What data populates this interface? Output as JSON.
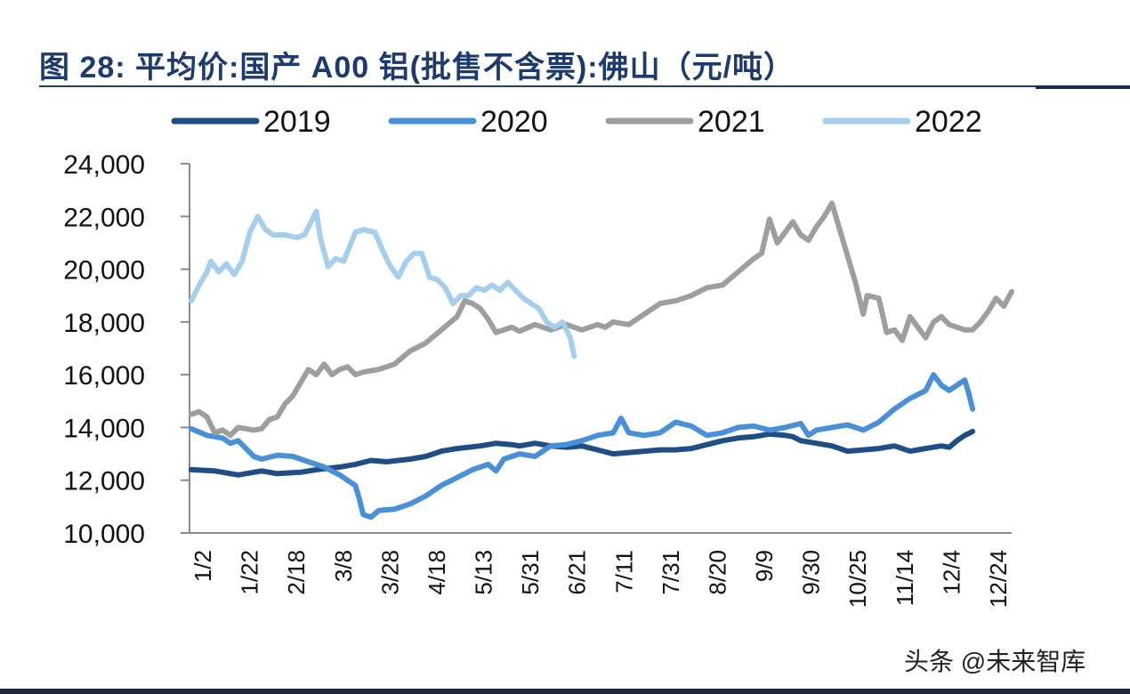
{
  "chart_data": {
    "type": "line",
    "title": "图 28: 平均价:国产 A00 铝(批售不含票):佛山（元/吨）",
    "xlabel": "",
    "ylabel": "",
    "ylim": [
      10000,
      24000
    ],
    "yticks": [
      10000,
      12000,
      14000,
      16000,
      18000,
      20000,
      22000,
      24000
    ],
    "ytick_labels": [
      "10,000",
      "12,000",
      "14,000",
      "16,000",
      "18,000",
      "20,000",
      "22,000",
      "24,000"
    ],
    "xtick_labels": [
      "1/2",
      "1/22",
      "2/18",
      "3/8",
      "3/28",
      "4/18",
      "5/13",
      "5/31",
      "6/21",
      "7/11",
      "7/31",
      "8/20",
      "9/9",
      "9/30",
      "10/25",
      "11/14",
      "12/4",
      "12/24"
    ],
    "x_description": "date within year (fraction of year from 1/2 to 12/31)",
    "grid": false,
    "legend_position": "top",
    "series": [
      {
        "name": "2019",
        "color": "#1f4e85",
        "points": [
          [
            0.0,
            12400
          ],
          [
            0.03,
            12350
          ],
          [
            0.06,
            12200
          ],
          [
            0.09,
            12350
          ],
          [
            0.11,
            12250
          ],
          [
            0.14,
            12300
          ],
          [
            0.16,
            12400
          ],
          [
            0.19,
            12500
          ],
          [
            0.21,
            12600
          ],
          [
            0.23,
            12750
          ],
          [
            0.25,
            12700
          ],
          [
            0.28,
            12800
          ],
          [
            0.3,
            12900
          ],
          [
            0.32,
            13100
          ],
          [
            0.34,
            13200
          ],
          [
            0.37,
            13300
          ],
          [
            0.39,
            13400
          ],
          [
            0.41,
            13350
          ],
          [
            0.42,
            13300
          ],
          [
            0.44,
            13400
          ],
          [
            0.46,
            13300
          ],
          [
            0.48,
            13250
          ],
          [
            0.5,
            13300
          ],
          [
            0.52,
            13150
          ],
          [
            0.54,
            13000
          ],
          [
            0.56,
            13050
          ],
          [
            0.58,
            13100
          ],
          [
            0.6,
            13150
          ],
          [
            0.62,
            13150
          ],
          [
            0.64,
            13200
          ],
          [
            0.66,
            13350
          ],
          [
            0.68,
            13500
          ],
          [
            0.7,
            13600
          ],
          [
            0.72,
            13650
          ],
          [
            0.74,
            13750
          ],
          [
            0.76,
            13700
          ],
          [
            0.77,
            13650
          ],
          [
            0.78,
            13500
          ],
          [
            0.8,
            13400
          ],
          [
            0.82,
            13300
          ],
          [
            0.84,
            13100
          ],
          [
            0.86,
            13150
          ],
          [
            0.88,
            13200
          ],
          [
            0.9,
            13300
          ],
          [
            0.91,
            13200
          ],
          [
            0.92,
            13100
          ],
          [
            0.94,
            13200
          ],
          [
            0.96,
            13300
          ],
          [
            0.97,
            13250
          ],
          [
            0.98,
            13500
          ],
          [
            0.99,
            13700
          ],
          [
            1.0,
            13850
          ]
        ]
      },
      {
        "name": "2020",
        "color": "#4a90d9",
        "points": [
          [
            0.0,
            13950
          ],
          [
            0.02,
            13700
          ],
          [
            0.04,
            13600
          ],
          [
            0.05,
            13400
          ],
          [
            0.06,
            13500
          ],
          [
            0.07,
            13200
          ],
          [
            0.08,
            12900
          ],
          [
            0.09,
            12800
          ],
          [
            0.11,
            12950
          ],
          [
            0.13,
            12900
          ],
          [
            0.15,
            12700
          ],
          [
            0.17,
            12500
          ],
          [
            0.19,
            12200
          ],
          [
            0.2,
            12000
          ],
          [
            0.21,
            11800
          ],
          [
            0.215,
            11300
          ],
          [
            0.22,
            10700
          ],
          [
            0.23,
            10600
          ],
          [
            0.24,
            10850
          ],
          [
            0.26,
            10900
          ],
          [
            0.28,
            11100
          ],
          [
            0.3,
            11400
          ],
          [
            0.32,
            11800
          ],
          [
            0.34,
            12100
          ],
          [
            0.36,
            12400
          ],
          [
            0.38,
            12600
          ],
          [
            0.39,
            12350
          ],
          [
            0.4,
            12800
          ],
          [
            0.42,
            13000
          ],
          [
            0.44,
            12900
          ],
          [
            0.46,
            13300
          ],
          [
            0.48,
            13350
          ],
          [
            0.5,
            13500
          ],
          [
            0.52,
            13700
          ],
          [
            0.54,
            13800
          ],
          [
            0.55,
            14350
          ],
          [
            0.56,
            13800
          ],
          [
            0.58,
            13700
          ],
          [
            0.6,
            13800
          ],
          [
            0.62,
            14200
          ],
          [
            0.64,
            14050
          ],
          [
            0.66,
            13700
          ],
          [
            0.68,
            13800
          ],
          [
            0.7,
            14000
          ],
          [
            0.72,
            14050
          ],
          [
            0.74,
            13900
          ],
          [
            0.76,
            14000
          ],
          [
            0.78,
            14150
          ],
          [
            0.79,
            13700
          ],
          [
            0.8,
            13900
          ],
          [
            0.82,
            14000
          ],
          [
            0.84,
            14100
          ],
          [
            0.86,
            13900
          ],
          [
            0.88,
            14200
          ],
          [
            0.9,
            14700
          ],
          [
            0.92,
            15100
          ],
          [
            0.94,
            15400
          ],
          [
            0.95,
            16000
          ],
          [
            0.96,
            15600
          ],
          [
            0.97,
            15400
          ],
          [
            0.98,
            15600
          ],
          [
            0.99,
            15800
          ],
          [
            0.995,
            15300
          ],
          [
            1.0,
            14700
          ]
        ]
      },
      {
        "name": "2021",
        "color": "#9e9e9e",
        "points": [
          [
            0.0,
            14500
          ],
          [
            0.01,
            14600
          ],
          [
            0.02,
            14400
          ],
          [
            0.03,
            13800
          ],
          [
            0.04,
            13900
          ],
          [
            0.05,
            13700
          ],
          [
            0.06,
            14000
          ],
          [
            0.07,
            13950
          ],
          [
            0.08,
            13900
          ],
          [
            0.09,
            13950
          ],
          [
            0.1,
            14300
          ],
          [
            0.11,
            14400
          ],
          [
            0.12,
            14900
          ],
          [
            0.13,
            15200
          ],
          [
            0.14,
            15700
          ],
          [
            0.15,
            16200
          ],
          [
            0.16,
            16000
          ],
          [
            0.17,
            16400
          ],
          [
            0.18,
            16000
          ],
          [
            0.19,
            16200
          ],
          [
            0.2,
            16300
          ],
          [
            0.21,
            16000
          ],
          [
            0.22,
            16100
          ],
          [
            0.24,
            16200
          ],
          [
            0.26,
            16400
          ],
          [
            0.28,
            16900
          ],
          [
            0.3,
            17200
          ],
          [
            0.32,
            17700
          ],
          [
            0.34,
            18200
          ],
          [
            0.35,
            18800
          ],
          [
            0.36,
            18700
          ],
          [
            0.37,
            18500
          ],
          [
            0.38,
            18100
          ],
          [
            0.39,
            17600
          ],
          [
            0.4,
            17700
          ],
          [
            0.41,
            17800
          ],
          [
            0.42,
            17650
          ],
          [
            0.44,
            17900
          ],
          [
            0.46,
            17700
          ],
          [
            0.48,
            17900
          ],
          [
            0.5,
            17700
          ],
          [
            0.51,
            17800
          ],
          [
            0.52,
            17900
          ],
          [
            0.53,
            17800
          ],
          [
            0.54,
            18000
          ],
          [
            0.56,
            17900
          ],
          [
            0.58,
            18300
          ],
          [
            0.6,
            18700
          ],
          [
            0.62,
            18800
          ],
          [
            0.64,
            19000
          ],
          [
            0.66,
            19300
          ],
          [
            0.68,
            19400
          ],
          [
            0.7,
            19900
          ],
          [
            0.72,
            20400
          ],
          [
            0.73,
            20600
          ],
          [
            0.74,
            21900
          ],
          [
            0.75,
            21000
          ],
          [
            0.76,
            21400
          ],
          [
            0.77,
            21800
          ],
          [
            0.78,
            21300
          ],
          [
            0.79,
            21100
          ],
          [
            0.8,
            21600
          ],
          [
            0.81,
            22000
          ],
          [
            0.82,
            22500
          ],
          [
            0.83,
            21500
          ],
          [
            0.84,
            20500
          ],
          [
            0.85,
            19500
          ],
          [
            0.86,
            18300
          ],
          [
            0.865,
            19000
          ],
          [
            0.88,
            18900
          ],
          [
            0.89,
            17600
          ],
          [
            0.9,
            17700
          ],
          [
            0.91,
            17300
          ],
          [
            0.92,
            18200
          ],
          [
            0.93,
            17800
          ],
          [
            0.94,
            17400
          ],
          [
            0.95,
            18000
          ],
          [
            0.96,
            18200
          ],
          [
            0.97,
            17900
          ],
          [
            0.98,
            17800
          ],
          [
            0.99,
            17700
          ],
          [
            1.0,
            17700
          ],
          [
            1.01,
            18000
          ],
          [
            1.02,
            18400
          ],
          [
            1.03,
            18900
          ],
          [
            1.04,
            18600
          ],
          [
            1.05,
            19150
          ]
        ]
      },
      {
        "name": "2022",
        "color": "#a6cfee",
        "points": [
          [
            0.0,
            18800
          ],
          [
            0.01,
            19400
          ],
          [
            0.02,
            19900
          ],
          [
            0.025,
            20300
          ],
          [
            0.035,
            19900
          ],
          [
            0.045,
            20200
          ],
          [
            0.055,
            19800
          ],
          [
            0.065,
            20300
          ],
          [
            0.075,
            21400
          ],
          [
            0.085,
            22000
          ],
          [
            0.095,
            21500
          ],
          [
            0.105,
            21300
          ],
          [
            0.12,
            21300
          ],
          [
            0.135,
            21200
          ],
          [
            0.145,
            21300
          ],
          [
            0.16,
            22200
          ],
          [
            0.165,
            21200
          ],
          [
            0.175,
            20100
          ],
          [
            0.185,
            20400
          ],
          [
            0.195,
            20300
          ],
          [
            0.21,
            21400
          ],
          [
            0.22,
            21500
          ],
          [
            0.235,
            21400
          ],
          [
            0.245,
            20700
          ],
          [
            0.255,
            20100
          ],
          [
            0.265,
            19700
          ],
          [
            0.275,
            20300
          ],
          [
            0.285,
            20600
          ],
          [
            0.295,
            20600
          ],
          [
            0.305,
            19700
          ],
          [
            0.315,
            19600
          ],
          [
            0.325,
            19300
          ],
          [
            0.335,
            18700
          ],
          [
            0.345,
            19000
          ],
          [
            0.355,
            19000
          ],
          [
            0.365,
            19300
          ],
          [
            0.375,
            19200
          ],
          [
            0.385,
            19400
          ],
          [
            0.395,
            19200
          ],
          [
            0.405,
            19500
          ],
          [
            0.415,
            19200
          ],
          [
            0.425,
            18900
          ],
          [
            0.435,
            18700
          ],
          [
            0.445,
            18500
          ],
          [
            0.455,
            18000
          ],
          [
            0.465,
            17800
          ],
          [
            0.475,
            18000
          ],
          [
            0.485,
            17400
          ],
          [
            0.49,
            16700
          ]
        ]
      }
    ]
  },
  "legend": {
    "items": [
      "2019",
      "2020",
      "2021",
      "2022"
    ]
  },
  "header": {
    "title": "图 28:  平均价:国产 A00 铝(批售不含票):佛山（元/吨）"
  },
  "watermark": "头条 @未来智库"
}
